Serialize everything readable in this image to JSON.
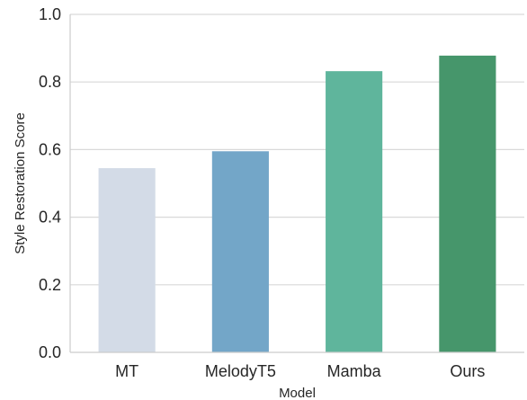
{
  "chart_data": {
    "type": "bar",
    "categories": [
      "MT",
      "MelodyT5",
      "Mamba",
      "Ours"
    ],
    "values": [
      0.545,
      0.595,
      0.832,
      0.878
    ],
    "colors": [
      "#d3dbe7",
      "#73a6c8",
      "#5fb59c",
      "#46966b"
    ],
    "xlabel": "Model",
    "ylabel": "Style Restoration Score",
    "ylim": [
      0.0,
      1.0
    ],
    "yticks": [
      "0.0",
      "0.2",
      "0.4",
      "0.6",
      "0.8",
      "1.0"
    ],
    "grid": "horizontal",
    "grid_color": "#d9d9d9"
  }
}
